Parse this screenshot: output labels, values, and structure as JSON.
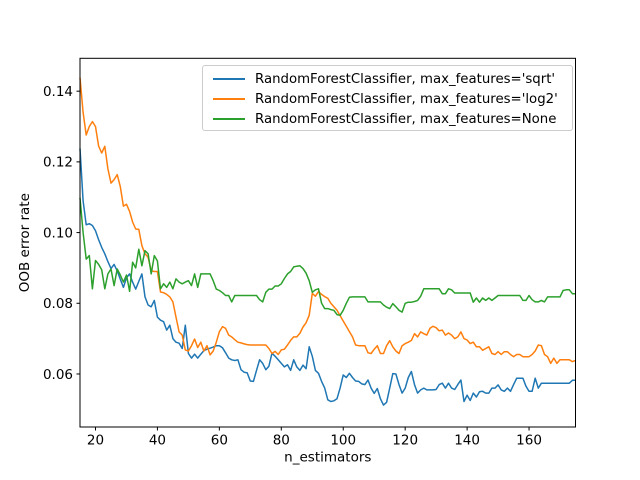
{
  "figure": {
    "background": "#ffffff"
  },
  "colors": {
    "axis": "#000000",
    "legend_border": "#cccccc",
    "series_blue": "#1f77b4",
    "series_orange": "#ff7f0e",
    "series_green": "#2ca02c"
  },
  "chart_data": {
    "type": "line",
    "title": "",
    "xlabel": "n_estimators",
    "ylabel": "OOB error rate",
    "xlim": [
      15,
      175
    ],
    "ylim": [
      0.045,
      0.1493
    ],
    "xticks": [
      20,
      40,
      60,
      80,
      100,
      120,
      140,
      160
    ],
    "xticklabels": [
      "20",
      "40",
      "60",
      "80",
      "100",
      "120",
      "140",
      "160"
    ],
    "yticks": [
      0.06,
      0.08,
      0.1,
      0.12,
      0.14
    ],
    "yticklabels": [
      "0.06",
      "0.08",
      "0.10",
      "0.12",
      "0.14"
    ],
    "grid": false,
    "legend_position": "upper right inside",
    "x": [
      15,
      16,
      17,
      18,
      19,
      20,
      21,
      22,
      23,
      24,
      25,
      26,
      27,
      28,
      29,
      30,
      31,
      32,
      33,
      34,
      35,
      36,
      37,
      38,
      39,
      40,
      41,
      42,
      43,
      44,
      45,
      46,
      47,
      48,
      49,
      50,
      51,
      52,
      53,
      54,
      55,
      56,
      57,
      58,
      59,
      60,
      61,
      62,
      63,
      64,
      65,
      66,
      67,
      68,
      69,
      70,
      71,
      72,
      73,
      74,
      75,
      76,
      77,
      78,
      79,
      80,
      81,
      82,
      83,
      84,
      85,
      86,
      87,
      88,
      89,
      90,
      91,
      92,
      93,
      94,
      95,
      96,
      97,
      98,
      99,
      100,
      101,
      102,
      103,
      104,
      105,
      106,
      107,
      108,
      109,
      110,
      111,
      112,
      113,
      114,
      115,
      116,
      117,
      118,
      119,
      120,
      121,
      122,
      123,
      124,
      125,
      126,
      127,
      128,
      129,
      130,
      131,
      132,
      133,
      134,
      135,
      136,
      137,
      138,
      139,
      140,
      141,
      142,
      143,
      144,
      145,
      146,
      147,
      148,
      149,
      150,
      151,
      152,
      153,
      154,
      155,
      156,
      157,
      158,
      159,
      160,
      161,
      162,
      163,
      164,
      165,
      166,
      167,
      168,
      169,
      170,
      171,
      172,
      173,
      174,
      175
    ],
    "series": [
      {
        "name": "RandomForestClassifier, max_features='sqrt'",
        "color": "#1f77b4",
        "y": [
          0.1238,
          0.109,
          0.1022,
          0.1025,
          0.102,
          0.1005,
          0.098,
          0.0958,
          0.094,
          0.0918,
          0.0898,
          0.091,
          0.0892,
          0.0868,
          0.0845,
          0.0872,
          0.0883,
          0.086,
          0.084,
          0.0862,
          0.0883,
          0.0818,
          0.0795,
          0.079,
          0.0808,
          0.0761,
          0.0752,
          0.0748,
          0.0724,
          0.0738,
          0.07,
          0.069,
          0.0687,
          0.0672,
          0.0738,
          0.0658,
          0.0645,
          0.0656,
          0.0645,
          0.0656,
          0.0666,
          0.067,
          0.0673,
          0.0676,
          0.068,
          0.068,
          0.0674,
          0.066,
          0.0645,
          0.064,
          0.0638,
          0.064,
          0.0612,
          0.0605,
          0.0603,
          0.058,
          0.0579,
          0.061,
          0.064,
          0.063,
          0.0612,
          0.0622,
          0.0659,
          0.065,
          0.064,
          0.063,
          0.062,
          0.0626,
          0.061,
          0.064,
          0.062,
          0.061,
          0.0625,
          0.0615,
          0.0677,
          0.065,
          0.061,
          0.0602,
          0.0579,
          0.056,
          0.0527,
          0.0522,
          0.0524,
          0.053,
          0.056,
          0.0597,
          0.059,
          0.0602,
          0.059,
          0.058,
          0.0579,
          0.0572,
          0.057,
          0.0583,
          0.056,
          0.0545,
          0.0559,
          0.053,
          0.0512,
          0.052,
          0.056,
          0.0601,
          0.06,
          0.057,
          0.0546,
          0.056,
          0.059,
          0.0607,
          0.057,
          0.0546,
          0.0555,
          0.056,
          0.0555,
          0.0555,
          0.0555,
          0.0556,
          0.057,
          0.0574,
          0.056,
          0.0574,
          0.056,
          0.0556,
          0.057,
          0.0583,
          0.0522,
          0.054,
          0.0525,
          0.0546,
          0.0535,
          0.055,
          0.0551,
          0.0546,
          0.0546,
          0.056,
          0.056,
          0.0569,
          0.0555,
          0.0551,
          0.056,
          0.0551,
          0.057,
          0.0588,
          0.0588,
          0.0588,
          0.0565,
          0.0551,
          0.0551,
          0.0588,
          0.056,
          0.0574,
          0.0574,
          0.0574,
          0.0574,
          0.0574,
          0.0574,
          0.0574,
          0.0574,
          0.0574,
          0.0574,
          0.0582,
          0.0582
        ]
      },
      {
        "name": "RandomForestClassifier, max_features='log2'",
        "color": "#ff7f0e",
        "y": [
          0.1438,
          0.134,
          0.1276,
          0.13,
          0.1314,
          0.13,
          0.1245,
          0.1225,
          0.1244,
          0.118,
          0.114,
          0.115,
          0.1164,
          0.113,
          0.1075,
          0.108,
          0.106,
          0.103,
          0.101,
          0.1009,
          0.0963,
          0.094,
          0.093,
          0.0892,
          0.089,
          0.089,
          0.0832,
          0.083,
          0.0825,
          0.0818,
          0.0804,
          0.0761,
          0.0719,
          0.071,
          0.0668,
          0.0665,
          0.068,
          0.0699,
          0.0675,
          0.069,
          0.0665,
          0.068,
          0.0654,
          0.0665,
          0.069,
          0.072,
          0.0734,
          0.0729,
          0.071,
          0.0705,
          0.0697,
          0.069,
          0.0688,
          0.0685,
          0.0683,
          0.0682,
          0.0682,
          0.0682,
          0.0682,
          0.0682,
          0.0682,
          0.0672,
          0.0658,
          0.0664,
          0.0655,
          0.0668,
          0.067,
          0.0682,
          0.0695,
          0.0705,
          0.0705,
          0.0715,
          0.0733,
          0.0745,
          0.0766,
          0.0828,
          0.082,
          0.0833,
          0.0825,
          0.0819,
          0.0814,
          0.08,
          0.079,
          0.078,
          0.0765,
          0.075,
          0.0735,
          0.072,
          0.0705,
          0.0682,
          0.068,
          0.068,
          0.068,
          0.066,
          0.0658,
          0.067,
          0.068,
          0.0658,
          0.0658,
          0.068,
          0.0694,
          0.0677,
          0.0665,
          0.0658,
          0.068,
          0.0686,
          0.069,
          0.0695,
          0.0714,
          0.0705,
          0.0719,
          0.0714,
          0.071,
          0.0729,
          0.0735,
          0.0731,
          0.0722,
          0.0724,
          0.071,
          0.0716,
          0.071,
          0.07,
          0.0705,
          0.0719,
          0.07,
          0.0696,
          0.0686,
          0.069,
          0.0677,
          0.0677,
          0.0667,
          0.0672,
          0.0677,
          0.0658,
          0.0655,
          0.0663,
          0.0655,
          0.0663,
          0.0663,
          0.0655,
          0.0649,
          0.0655,
          0.0655,
          0.0649,
          0.0649,
          0.0649,
          0.0655,
          0.0665,
          0.0682,
          0.068,
          0.0655,
          0.0649,
          0.063,
          0.0645,
          0.063,
          0.064,
          0.064,
          0.064,
          0.064,
          0.0635,
          0.0638
        ]
      },
      {
        "name": "RandomForestClassifier, max_features=None",
        "color": "#2ca02c",
        "y": [
          0.1098,
          0.1,
          0.0925,
          0.0935,
          0.0841,
          0.0921,
          0.091,
          0.0895,
          0.0841,
          0.0883,
          0.0897,
          0.085,
          0.0897,
          0.088,
          0.086,
          0.088,
          0.0834,
          0.0916,
          0.09,
          0.0953,
          0.0906,
          0.0949,
          0.094,
          0.0883,
          0.0935,
          0.092,
          0.0841,
          0.0855,
          0.0845,
          0.086,
          0.0841,
          0.0869,
          0.086,
          0.0855,
          0.086,
          0.0864,
          0.085,
          0.0883,
          0.0845,
          0.0883,
          0.0883,
          0.0883,
          0.0883,
          0.0864,
          0.084,
          0.0836,
          0.083,
          0.0822,
          0.0822,
          0.0804,
          0.0822,
          0.0822,
          0.0822,
          0.0822,
          0.0822,
          0.0822,
          0.0822,
          0.0822,
          0.081,
          0.0804,
          0.0831,
          0.084,
          0.084,
          0.0849,
          0.0849,
          0.0855,
          0.087,
          0.0883,
          0.089,
          0.0903,
          0.0905,
          0.0906,
          0.0898,
          0.0885,
          0.0864,
          0.0831,
          0.0838,
          0.0841,
          0.08,
          0.0785,
          0.0785,
          0.0782,
          0.078,
          0.0768,
          0.0766,
          0.078,
          0.08,
          0.0817,
          0.0818,
          0.0818,
          0.0818,
          0.0818,
          0.0818,
          0.0804,
          0.0804,
          0.0804,
          0.0804,
          0.0804,
          0.0795,
          0.0789,
          0.0785,
          0.0799,
          0.079,
          0.078,
          0.0775,
          0.08,
          0.0803,
          0.0803,
          0.0805,
          0.0808,
          0.082,
          0.0841,
          0.0841,
          0.0841,
          0.0841,
          0.0841,
          0.0841,
          0.0827,
          0.0827,
          0.0841,
          0.0838,
          0.0829,
          0.0829,
          0.0829,
          0.0829,
          0.0829,
          0.0829,
          0.0803,
          0.0815,
          0.0803,
          0.0815,
          0.0808,
          0.0815,
          0.0808,
          0.0815,
          0.0822,
          0.0822,
          0.0822,
          0.0822,
          0.0822,
          0.0822,
          0.0822,
          0.0822,
          0.0808,
          0.0808,
          0.0822,
          0.081,
          0.0804,
          0.0804,
          0.0808,
          0.0804,
          0.0818,
          0.0818,
          0.0818,
          0.0818,
          0.0818,
          0.0836,
          0.0838,
          0.0838,
          0.0827,
          0.0827
        ]
      }
    ]
  }
}
